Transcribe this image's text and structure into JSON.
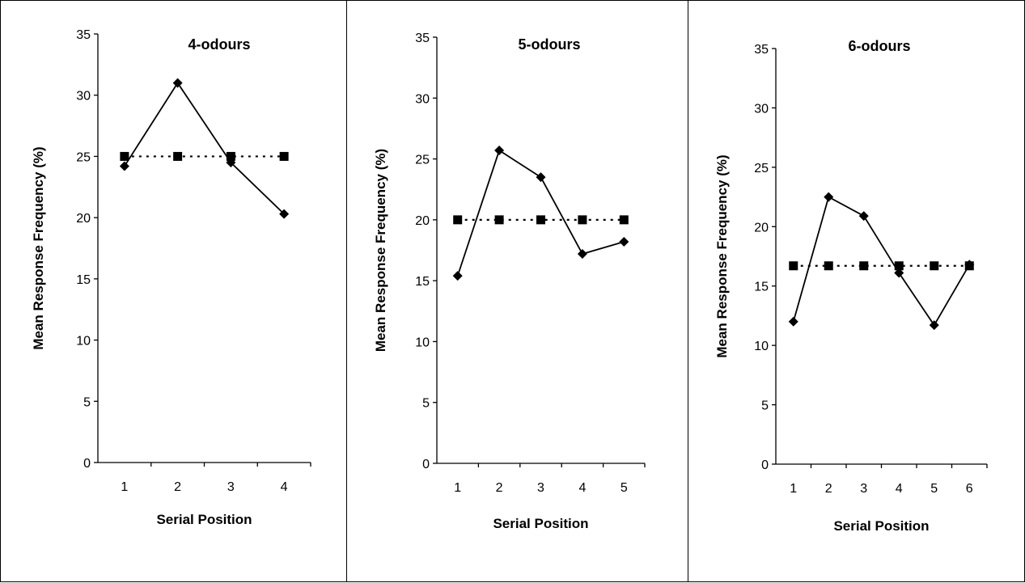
{
  "colors": {
    "line": "#000000",
    "background": "#ffffff"
  },
  "chart_data": [
    {
      "type": "line",
      "title": "4-odours",
      "xlabel": "Serial Position",
      "ylabel": "Mean Response Frequency (%)",
      "categories": [
        "1",
        "2",
        "3",
        "4"
      ],
      "ylim": [
        0,
        35
      ],
      "yticks": [
        "0",
        "5",
        "10",
        "15",
        "20",
        "25",
        "30",
        "35"
      ],
      "grid": false,
      "series": [
        {
          "marker": "diamond",
          "style": "solid",
          "values": [
            24.2,
            31.0,
            24.5,
            20.3
          ]
        },
        {
          "marker": "square",
          "style": "dotted",
          "values": [
            25,
            25,
            25,
            25
          ]
        }
      ]
    },
    {
      "type": "line",
      "title": "5-odours",
      "xlabel": "Serial Position",
      "ylabel": "Mean Response Frequency (%)",
      "categories": [
        "1",
        "2",
        "3",
        "4",
        "5"
      ],
      "ylim": [
        0,
        35
      ],
      "yticks": [
        "0",
        "5",
        "10",
        "15",
        "20",
        "25",
        "30",
        "35"
      ],
      "grid": false,
      "series": [
        {
          "marker": "diamond",
          "style": "solid",
          "values": [
            15.4,
            25.7,
            23.5,
            17.2,
            18.2
          ]
        },
        {
          "marker": "square",
          "style": "dotted",
          "values": [
            20,
            20,
            20,
            20,
            20
          ]
        }
      ]
    },
    {
      "type": "line",
      "title": "6-odours",
      "xlabel": "Serial Position",
      "ylabel": "Mean Response Frequency (%)",
      "categories": [
        "1",
        "2",
        "3",
        "4",
        "5",
        "6"
      ],
      "ylim": [
        0,
        35
      ],
      "yticks": [
        "0",
        "5",
        "10",
        "15",
        "20",
        "25",
        "30",
        "35"
      ],
      "grid": false,
      "series": [
        {
          "marker": "diamond",
          "style": "solid",
          "values": [
            12.0,
            22.5,
            20.9,
            16.1,
            11.7,
            16.8
          ]
        },
        {
          "marker": "square",
          "style": "dotted",
          "values": [
            16.7,
            16.7,
            16.7,
            16.7,
            16.7,
            16.7
          ]
        }
      ]
    }
  ]
}
